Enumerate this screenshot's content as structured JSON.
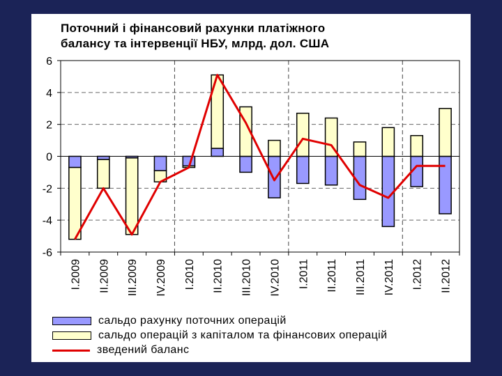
{
  "chart_data": {
    "type": "bar",
    "title": "Поточний і фінансовий рахунки платіжного балансу та інтервенції НБУ, млрд. дол. США",
    "title_lines": [
      "Поточний і фінансовий рахунки платіжного",
      "балансу та інтервенції НБУ, млрд. дол. США"
    ],
    "categories": [
      "I.2009",
      "II.2009",
      "III.2009",
      "IV.2009",
      "I.2010",
      "II.2010",
      "III.2010",
      "IV.2010",
      "I.2011",
      "II.2011",
      "III.2011",
      "IV.2011",
      "I.2012",
      "II.2012"
    ],
    "stacked": true,
    "series": [
      {
        "name": "сальдо рахунку поточних операцій",
        "type": "bar",
        "color": "#9999ff",
        "values": [
          -0.7,
          -0.2,
          -0.1,
          -0.9,
          -0.6,
          0.5,
          -1.0,
          -2.6,
          -1.7,
          -1.8,
          -2.7,
          -4.4,
          -1.9,
          -3.6
        ]
      },
      {
        "name": "сальдо операцій з капіталом та фінансових операцій",
        "type": "bar",
        "color": "#ffffcc",
        "values": [
          -4.5,
          -1.8,
          -4.8,
          -0.7,
          -0.1,
          4.6,
          3.1,
          1.0,
          2.7,
          2.4,
          0.9,
          1.8,
          1.3,
          3.0
        ]
      },
      {
        "name": "зведений баланс",
        "type": "line",
        "color": "#e00000",
        "values": [
          -5.2,
          -2.0,
          -4.9,
          -1.6,
          -0.7,
          5.1,
          2.1,
          -1.5,
          1.1,
          0.7,
          -1.8,
          -2.6,
          -0.6,
          -0.6
        ]
      }
    ],
    "ylim": [
      -6,
      6
    ],
    "yticks": [
      "6",
      "4",
      "2",
      "0",
      "-2",
      "-4",
      "-6"
    ],
    "xlabel": "",
    "ylabel": "",
    "legend_position": "bottom",
    "grid": "dashed horizontal gridlines and dashed year separators"
  }
}
